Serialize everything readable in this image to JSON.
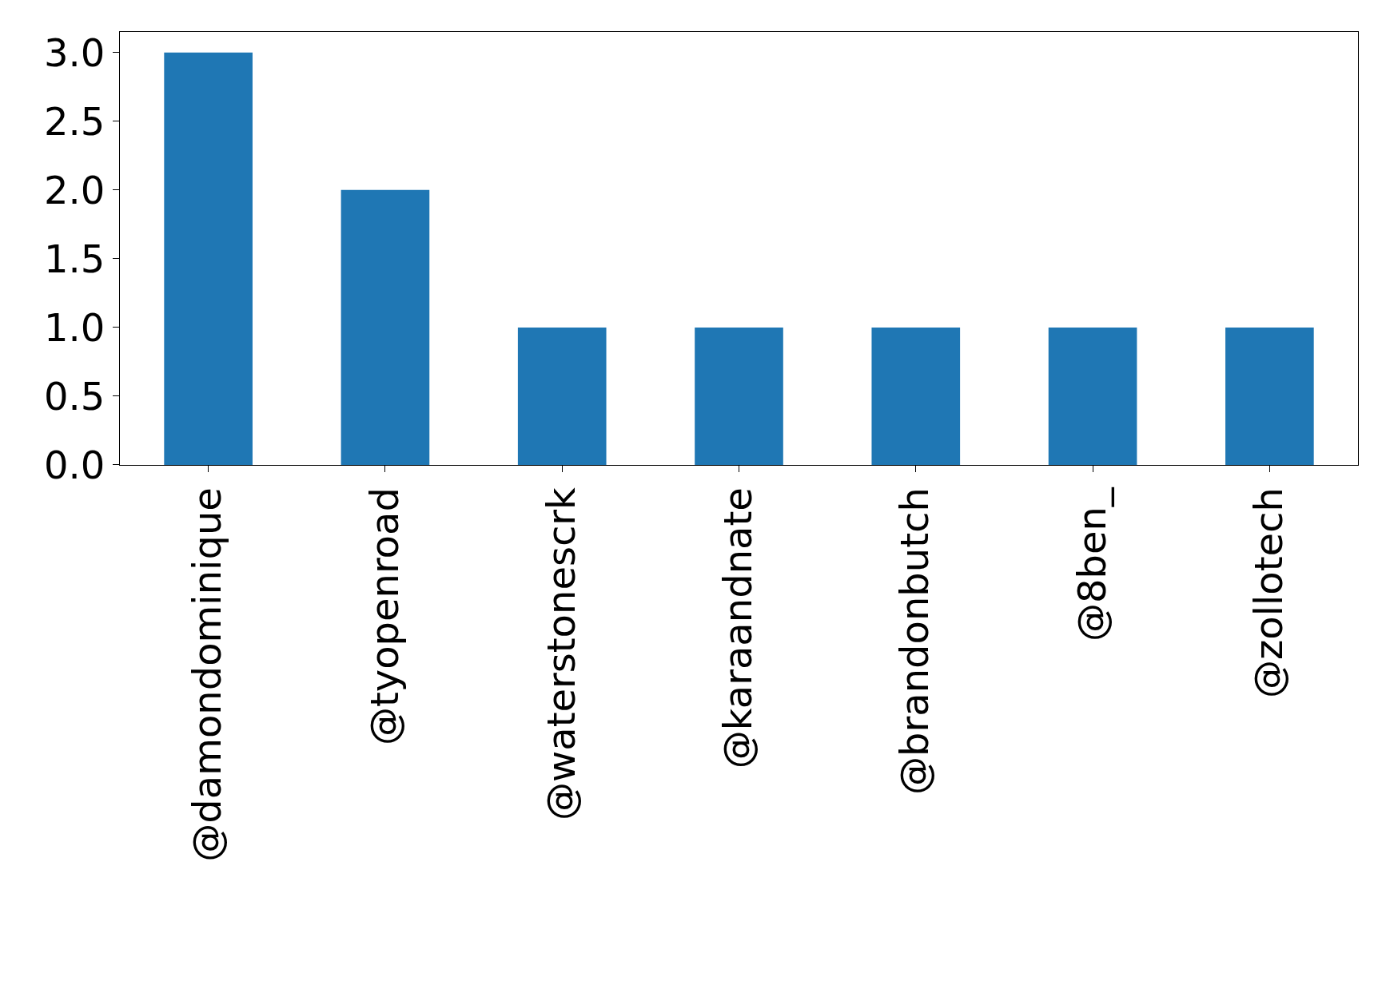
{
  "chart_data": {
    "type": "bar",
    "categories": [
      "@damondominique",
      "@tyopenroad",
      "@waterstonescrk",
      "@karaandnate",
      "@brandonbutch",
      "@8ben_",
      "@zollotech"
    ],
    "values": [
      3,
      2,
      1,
      1,
      1,
      1,
      1
    ],
    "color": "#1f77b4",
    "ylim": [
      0,
      3.15
    ],
    "yticks": [
      {
        "value": 0,
        "label": "0.0"
      },
      {
        "value": 0.5,
        "label": "0.5"
      },
      {
        "value": 1,
        "label": "1.0"
      },
      {
        "value": 1.5,
        "label": "1.5"
      },
      {
        "value": 2,
        "label": "2.0"
      },
      {
        "value": 2.5,
        "label": "2.5"
      },
      {
        "value": 3,
        "label": "3.0"
      }
    ]
  }
}
